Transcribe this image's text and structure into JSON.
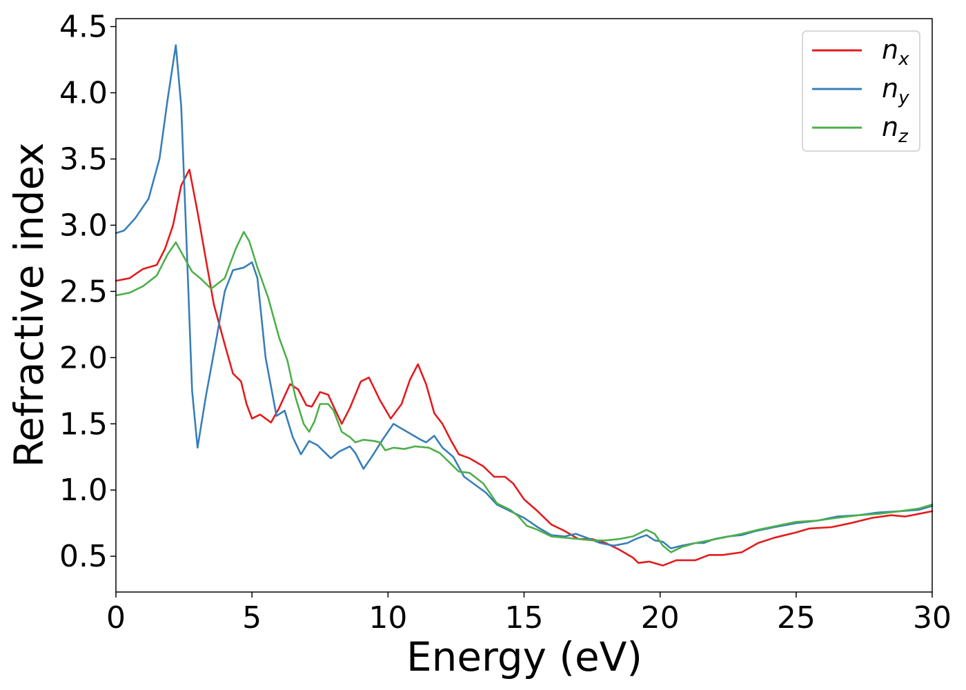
{
  "chart_data": {
    "type": "line",
    "title": "",
    "xlabel": "Energy (eV)",
    "ylabel": "Refractive index",
    "xlim": [
      0,
      30
    ],
    "ylim": [
      0.23,
      4.56
    ],
    "xticks": [
      0,
      5,
      10,
      15,
      20,
      25,
      30
    ],
    "yticks": [
      0.5,
      1.0,
      1.5,
      2.0,
      2.5,
      3.0,
      3.5,
      4.0,
      4.5
    ],
    "xtick_labels": [
      "0",
      "5",
      "10",
      "15",
      "20",
      "25",
      "30"
    ],
    "ytick_labels": [
      "0.5",
      "1.0",
      "1.5",
      "2.0",
      "2.5",
      "3.0",
      "3.5",
      "4.0",
      "4.5"
    ],
    "grid": false,
    "legend_position": "top-right",
    "series": [
      {
        "name": "n",
        "subscript": "x",
        "color": "#e41a1c",
        "points": [
          [
            0,
            2.58
          ],
          [
            0.5,
            2.6
          ],
          [
            1,
            2.67
          ],
          [
            1.5,
            2.7
          ],
          [
            1.8,
            2.82
          ],
          [
            2.1,
            3.0
          ],
          [
            2.4,
            3.3
          ],
          [
            2.7,
            3.42
          ],
          [
            3.0,
            3.1
          ],
          [
            3.3,
            2.75
          ],
          [
            3.6,
            2.4
          ],
          [
            4.0,
            2.1
          ],
          [
            4.3,
            1.88
          ],
          [
            4.6,
            1.82
          ],
          [
            4.8,
            1.65
          ],
          [
            5.0,
            1.54
          ],
          [
            5.3,
            1.57
          ],
          [
            5.7,
            1.51
          ],
          [
            6.0,
            1.62
          ],
          [
            6.4,
            1.8
          ],
          [
            6.7,
            1.76
          ],
          [
            7.0,
            1.64
          ],
          [
            7.2,
            1.63
          ],
          [
            7.5,
            1.74
          ],
          [
            7.8,
            1.72
          ],
          [
            8.0,
            1.63
          ],
          [
            8.3,
            1.5
          ],
          [
            8.6,
            1.62
          ],
          [
            9.0,
            1.82
          ],
          [
            9.3,
            1.85
          ],
          [
            9.7,
            1.68
          ],
          [
            10.1,
            1.54
          ],
          [
            10.5,
            1.65
          ],
          [
            10.8,
            1.83
          ],
          [
            11.1,
            1.95
          ],
          [
            11.4,
            1.8
          ],
          [
            11.7,
            1.58
          ],
          [
            12.0,
            1.5
          ],
          [
            12.3,
            1.38
          ],
          [
            12.6,
            1.27
          ],
          [
            13.0,
            1.24
          ],
          [
            13.5,
            1.18
          ],
          [
            13.9,
            1.1
          ],
          [
            14.3,
            1.1
          ],
          [
            14.6,
            1.05
          ],
          [
            15.0,
            0.93
          ],
          [
            15.5,
            0.84
          ],
          [
            16.0,
            0.74
          ],
          [
            16.5,
            0.69
          ],
          [
            17.0,
            0.63
          ],
          [
            17.5,
            0.63
          ],
          [
            18.0,
            0.6
          ],
          [
            18.5,
            0.55
          ],
          [
            19.0,
            0.49
          ],
          [
            19.2,
            0.45
          ],
          [
            19.6,
            0.46
          ],
          [
            20.1,
            0.43
          ],
          [
            20.6,
            0.47
          ],
          [
            21.3,
            0.47
          ],
          [
            21.8,
            0.51
          ],
          [
            22.3,
            0.51
          ],
          [
            23.0,
            0.53
          ],
          [
            23.6,
            0.6
          ],
          [
            24.2,
            0.64
          ],
          [
            25.0,
            0.68
          ],
          [
            25.5,
            0.71
          ],
          [
            26.3,
            0.72
          ],
          [
            27.0,
            0.75
          ],
          [
            27.8,
            0.79
          ],
          [
            28.5,
            0.81
          ],
          [
            29.0,
            0.8
          ],
          [
            29.5,
            0.82
          ],
          [
            30,
            0.84
          ]
        ]
      },
      {
        "name": "n",
        "subscript": "y",
        "color": "#377eb8",
        "points": [
          [
            0,
            2.94
          ],
          [
            0.3,
            2.96
          ],
          [
            0.7,
            3.05
          ],
          [
            1.2,
            3.2
          ],
          [
            1.6,
            3.5
          ],
          [
            1.9,
            3.95
          ],
          [
            2.2,
            4.36
          ],
          [
            2.4,
            3.9
          ],
          [
            2.6,
            2.85
          ],
          [
            2.8,
            1.75
          ],
          [
            3.0,
            1.32
          ],
          [
            3.3,
            1.7
          ],
          [
            3.7,
            2.15
          ],
          [
            4.0,
            2.5
          ],
          [
            4.3,
            2.66
          ],
          [
            4.7,
            2.68
          ],
          [
            5.0,
            2.72
          ],
          [
            5.2,
            2.6
          ],
          [
            5.5,
            2.0
          ],
          [
            5.9,
            1.56
          ],
          [
            6.2,
            1.6
          ],
          [
            6.5,
            1.4
          ],
          [
            6.8,
            1.27
          ],
          [
            7.1,
            1.37
          ],
          [
            7.4,
            1.34
          ],
          [
            7.9,
            1.24
          ],
          [
            8.2,
            1.29
          ],
          [
            8.6,
            1.33
          ],
          [
            8.8,
            1.28
          ],
          [
            9.1,
            1.16
          ],
          [
            9.4,
            1.25
          ],
          [
            9.8,
            1.38
          ],
          [
            10.2,
            1.5
          ],
          [
            10.7,
            1.44
          ],
          [
            11.2,
            1.38
          ],
          [
            11.4,
            1.36
          ],
          [
            11.7,
            1.41
          ],
          [
            12.0,
            1.32
          ],
          [
            12.4,
            1.25
          ],
          [
            12.8,
            1.1
          ],
          [
            13.2,
            1.04
          ],
          [
            13.6,
            0.98
          ],
          [
            14.0,
            0.89
          ],
          [
            14.5,
            0.84
          ],
          [
            15.0,
            0.79
          ],
          [
            15.5,
            0.72
          ],
          [
            16.0,
            0.66
          ],
          [
            16.5,
            0.65
          ],
          [
            16.9,
            0.67
          ],
          [
            17.3,
            0.64
          ],
          [
            17.8,
            0.6
          ],
          [
            18.3,
            0.58
          ],
          [
            18.8,
            0.6
          ],
          [
            19.1,
            0.63
          ],
          [
            19.5,
            0.66
          ],
          [
            19.8,
            0.62
          ],
          [
            20.1,
            0.61
          ],
          [
            20.4,
            0.56
          ],
          [
            20.8,
            0.58
          ],
          [
            21.3,
            0.6
          ],
          [
            21.6,
            0.6
          ],
          [
            22.0,
            0.63
          ],
          [
            22.5,
            0.65
          ],
          [
            23.0,
            0.66
          ],
          [
            23.5,
            0.69
          ],
          [
            24.2,
            0.72
          ],
          [
            25.0,
            0.75
          ],
          [
            25.8,
            0.77
          ],
          [
            26.5,
            0.8
          ],
          [
            27.3,
            0.81
          ],
          [
            28.0,
            0.83
          ],
          [
            28.8,
            0.84
          ],
          [
            29.5,
            0.85
          ],
          [
            30,
            0.88
          ]
        ]
      },
      {
        "name": "n",
        "subscript": "z",
        "color": "#4daf4a",
        "points": [
          [
            0,
            2.47
          ],
          [
            0.5,
            2.49
          ],
          [
            1.0,
            2.54
          ],
          [
            1.5,
            2.62
          ],
          [
            1.9,
            2.78
          ],
          [
            2.2,
            2.87
          ],
          [
            2.5,
            2.76
          ],
          [
            2.8,
            2.65
          ],
          [
            3.1,
            2.6
          ],
          [
            3.5,
            2.52
          ],
          [
            4.0,
            2.6
          ],
          [
            4.4,
            2.82
          ],
          [
            4.7,
            2.95
          ],
          [
            4.9,
            2.88
          ],
          [
            5.2,
            2.68
          ],
          [
            5.6,
            2.45
          ],
          [
            6.0,
            2.15
          ],
          [
            6.3,
            1.98
          ],
          [
            6.6,
            1.7
          ],
          [
            6.9,
            1.5
          ],
          [
            7.1,
            1.44
          ],
          [
            7.3,
            1.52
          ],
          [
            7.5,
            1.65
          ],
          [
            7.8,
            1.65
          ],
          [
            8.0,
            1.6
          ],
          [
            8.3,
            1.44
          ],
          [
            8.6,
            1.4
          ],
          [
            8.8,
            1.36
          ],
          [
            9.1,
            1.38
          ],
          [
            9.5,
            1.37
          ],
          [
            9.7,
            1.36
          ],
          [
            9.9,
            1.3
          ],
          [
            10.2,
            1.32
          ],
          [
            10.6,
            1.31
          ],
          [
            11.0,
            1.33
          ],
          [
            11.5,
            1.32
          ],
          [
            11.9,
            1.28
          ],
          [
            12.3,
            1.2
          ],
          [
            12.6,
            1.14
          ],
          [
            13.0,
            1.13
          ],
          [
            13.5,
            1.05
          ],
          [
            14.0,
            0.9
          ],
          [
            14.5,
            0.85
          ],
          [
            14.8,
            0.8
          ],
          [
            15.1,
            0.73
          ],
          [
            15.5,
            0.7
          ],
          [
            16.0,
            0.65
          ],
          [
            16.5,
            0.64
          ],
          [
            17.0,
            0.63
          ],
          [
            17.5,
            0.62
          ],
          [
            18.0,
            0.62
          ],
          [
            18.5,
            0.63
          ],
          [
            19.0,
            0.65
          ],
          [
            19.5,
            0.7
          ],
          [
            19.8,
            0.67
          ],
          [
            20.1,
            0.58
          ],
          [
            20.4,
            0.53
          ],
          [
            20.8,
            0.57
          ],
          [
            21.3,
            0.6
          ],
          [
            21.8,
            0.62
          ],
          [
            22.3,
            0.64
          ],
          [
            23.0,
            0.67
          ],
          [
            23.6,
            0.7
          ],
          [
            24.3,
            0.73
          ],
          [
            25.0,
            0.76
          ],
          [
            25.8,
            0.77
          ],
          [
            26.5,
            0.79
          ],
          [
            27.3,
            0.81
          ],
          [
            28.0,
            0.82
          ],
          [
            28.8,
            0.84
          ],
          [
            29.5,
            0.86
          ],
          [
            30,
            0.89
          ]
        ]
      }
    ]
  }
}
